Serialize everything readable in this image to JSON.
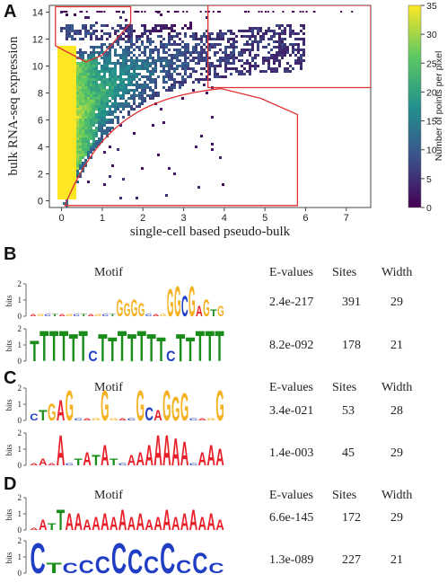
{
  "panels": {
    "a": {
      "letter": "A"
    },
    "b": {
      "letter": "B"
    },
    "c": {
      "letter": "C"
    },
    "d": {
      "letter": "D"
    }
  },
  "chart_data": {
    "type": "heatmap",
    "xlabel": "single-cell based pseudo-bulk",
    "ylabel": "bulk RNA-seq expression",
    "xlim": [
      -0.3,
      7.6
    ],
    "ylim": [
      -0.5,
      14.5
    ],
    "xticks": [
      "0",
      "1",
      "2",
      "3",
      "4",
      "5",
      "6",
      "7"
    ],
    "yticks": [
      "0",
      "2",
      "4",
      "6",
      "8",
      "10",
      "12",
      "14"
    ],
    "colorbar": {
      "label": "Number of points per pixel",
      "min": 0,
      "max": 35,
      "ticks": [
        "0",
        "5",
        "10",
        "15",
        "20",
        "25",
        "30",
        "35"
      ],
      "colors": [
        "#440154",
        "#3b528b",
        "#21918c",
        "#5ec962",
        "#fde725"
      ]
    },
    "regions": [
      {
        "shape": "upper-left",
        "color": "#e03030"
      },
      {
        "shape": "upper-right",
        "color": "#e03030"
      },
      {
        "shape": "lower-right",
        "color": "#e03030"
      }
    ]
  },
  "table": {
    "headers": {
      "motif": "Motif",
      "evalues": "E-values",
      "sites": "Sites",
      "width": "Width"
    },
    "bits_label": "bits",
    "rows_b": [
      {
        "evalue": "2.4e-217",
        "sites": "391",
        "width": "29"
      },
      {
        "evalue": "8.2e-092",
        "sites": "178",
        "width": "21"
      }
    ],
    "rows_c": [
      {
        "evalue": "3.4e-021",
        "sites": "53",
        "width": "28"
      },
      {
        "evalue": "1.4e-003",
        "sites": "45",
        "width": "29"
      }
    ],
    "rows_d": [
      {
        "evalue": "6.6e-145",
        "sites": "172",
        "width": "29"
      },
      {
        "evalue": "1.3e-089",
        "sites": "227",
        "width": "21"
      }
    ]
  },
  "logo_colors": {
    "A": "#e8202a",
    "C": "#1f3ec4",
    "G": "#f4b223",
    "T": "#1a8c1a"
  }
}
